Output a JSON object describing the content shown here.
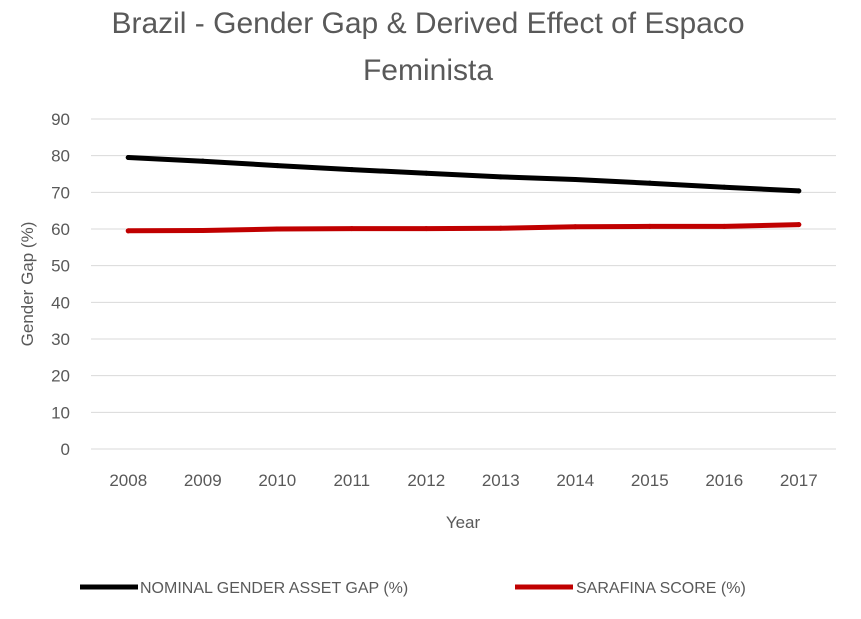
{
  "chart_data": {
    "type": "line",
    "title_lines": [
      "Brazil - Gender Gap & Derived Effect of Espaco",
      "Feminista"
    ],
    "xlabel": "Year",
    "ylabel": "Gender Gap (%)",
    "categories": [
      "2008",
      "2009",
      "2010",
      "2011",
      "2012",
      "2013",
      "2014",
      "2015",
      "2016",
      "2017"
    ],
    "ylim": [
      0,
      90
    ],
    "yticks": [
      0,
      10,
      20,
      30,
      40,
      50,
      60,
      70,
      80,
      90
    ],
    "grid": true,
    "legend_position": "bottom",
    "series": [
      {
        "name": "NOMINAL GENDER ASSET GAP (%)",
        "color": "#000000",
        "values": [
          79.5,
          78.5,
          77.3,
          76.2,
          75.2,
          74.2,
          73.5,
          72.5,
          71.4,
          70.4
        ]
      },
      {
        "name": "SARAFINA SCORE (%)",
        "color": "#c00000",
        "values": [
          59.5,
          59.6,
          60.0,
          60.1,
          60.1,
          60.2,
          60.6,
          60.7,
          60.7,
          61.2
        ]
      }
    ]
  }
}
